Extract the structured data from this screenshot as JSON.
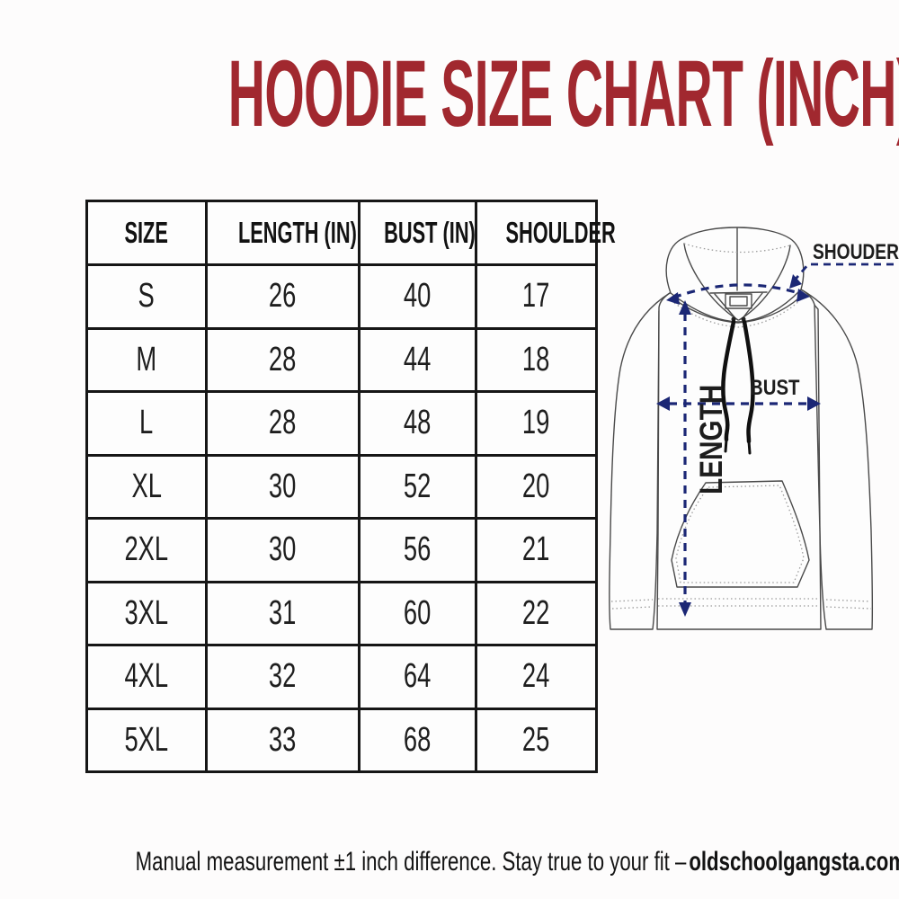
{
  "title": "HOODIE SIZE CHART (INCH)",
  "colors": {
    "title_red": "#a1282f",
    "measurement_navy": "#1b2775",
    "ink": "#1d1d1d"
  },
  "table": {
    "headers": [
      "SIZE",
      "LENGTH (IN)",
      "BUST (IN)",
      "SHOULDER"
    ],
    "rows": [
      [
        "S",
        "26",
        "40",
        "17"
      ],
      [
        "M",
        "28",
        "44",
        "18"
      ],
      [
        "L",
        "28",
        "48",
        "19"
      ],
      [
        "XL",
        "30",
        "52",
        "20"
      ],
      [
        "2XL",
        "30",
        "56",
        "21"
      ],
      [
        "3XL",
        "31",
        "60",
        "22"
      ],
      [
        "4XL",
        "32",
        "64",
        "24"
      ],
      [
        "5XL",
        "33",
        "68",
        "25"
      ]
    ]
  },
  "chart_data": {
    "type": "table",
    "title": "HOODIE SIZE CHART (INCH)",
    "columns": [
      "SIZE",
      "LENGTH (IN)",
      "BUST (IN)",
      "SHOULDER"
    ],
    "rows": [
      {
        "size": "S",
        "length_in": 26,
        "bust_in": 40,
        "shoulder": 17
      },
      {
        "size": "M",
        "length_in": 28,
        "bust_in": 44,
        "shoulder": 18
      },
      {
        "size": "L",
        "length_in": 28,
        "bust_in": 48,
        "shoulder": 19
      },
      {
        "size": "XL",
        "length_in": 30,
        "bust_in": 52,
        "shoulder": 20
      },
      {
        "size": "2XL",
        "length_in": 30,
        "bust_in": 56,
        "shoulder": 21
      },
      {
        "size": "3XL",
        "length_in": 31,
        "bust_in": 60,
        "shoulder": 22
      },
      {
        "size": "4XL",
        "length_in": 32,
        "bust_in": 64,
        "shoulder": 24
      },
      {
        "size": "5XL",
        "length_in": 33,
        "bust_in": 68,
        "shoulder": 25
      }
    ]
  },
  "diagram": {
    "labels": {
      "shoulder": "SHOUDER",
      "bust": "BUST",
      "length": "LENGTH"
    }
  },
  "footer": {
    "text": "Manual measurement ±1 inch difference. Stay true to your fit –",
    "brand": "oldschoolgangsta.com"
  }
}
